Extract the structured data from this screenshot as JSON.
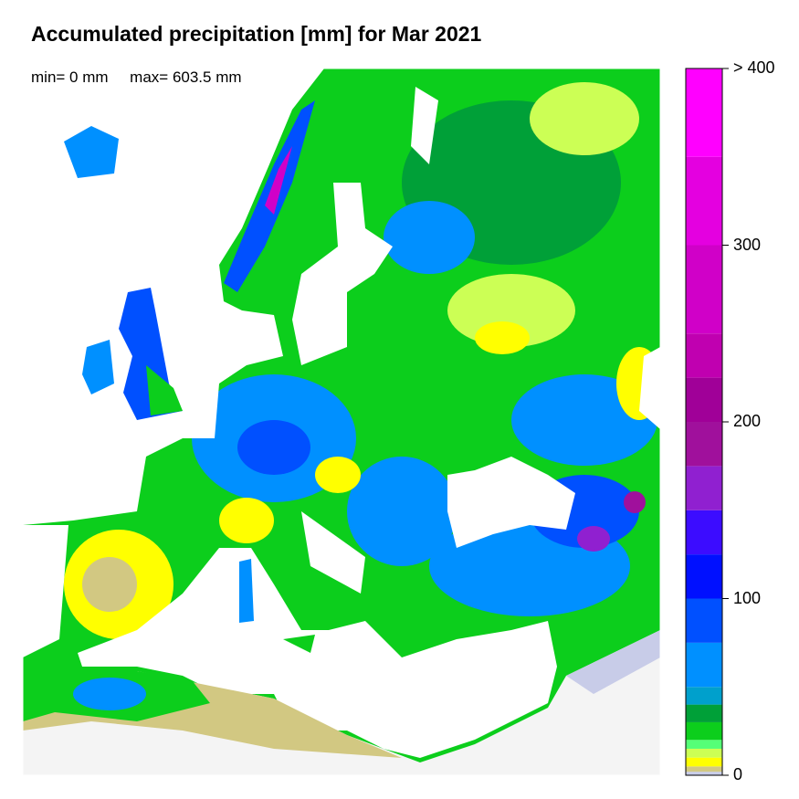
{
  "title": "Accumulated precipitation [mm] for Mar 2021",
  "min_label": "min= 0 mm",
  "max_label": "max= 603.5 mm",
  "legend": {
    "ticks": [
      {
        "value": 0,
        "label": "0"
      },
      {
        "value": 100,
        "label": "100"
      },
      {
        "value": 200,
        "label": "200"
      },
      {
        "value": 300,
        "label": "300"
      },
      {
        "value": 400,
        "label": "> 400"
      }
    ],
    "bands": [
      {
        "from": 0,
        "to": 2,
        "color": "#c8cce8"
      },
      {
        "from": 2,
        "to": 5,
        "color": "#d2c882"
      },
      {
        "from": 5,
        "to": 10,
        "color": "#ffff00"
      },
      {
        "from": 10,
        "to": 15,
        "color": "#ccff55"
      },
      {
        "from": 15,
        "to": 20,
        "color": "#55ff77"
      },
      {
        "from": 20,
        "to": 30,
        "color": "#0cce1c"
      },
      {
        "from": 30,
        "to": 40,
        "color": "#00a038"
      },
      {
        "from": 40,
        "to": 50,
        "color": "#00a0cc"
      },
      {
        "from": 50,
        "to": 75,
        "color": "#0090ff"
      },
      {
        "from": 75,
        "to": 100,
        "color": "#0050ff"
      },
      {
        "from": 100,
        "to": 125,
        "color": "#0010ff"
      },
      {
        "from": 125,
        "to": 150,
        "color": "#3c0cff"
      },
      {
        "from": 150,
        "to": 175,
        "color": "#9020d0"
      },
      {
        "from": 175,
        "to": 200,
        "color": "#a0109c"
      },
      {
        "from": 200,
        "to": 225,
        "color": "#a00098"
      },
      {
        "from": 225,
        "to": 250,
        "color": "#c000b0"
      },
      {
        "from": 250,
        "to": 300,
        "color": "#d000c8"
      },
      {
        "from": 300,
        "to": 350,
        "color": "#e400e0"
      },
      {
        "from": 350,
        "to": 400,
        "color": "#ff00ff"
      }
    ]
  },
  "colors": {
    "sea": "#ffffff",
    "no_data": "#f4f4f4",
    "border": "#000000"
  }
}
